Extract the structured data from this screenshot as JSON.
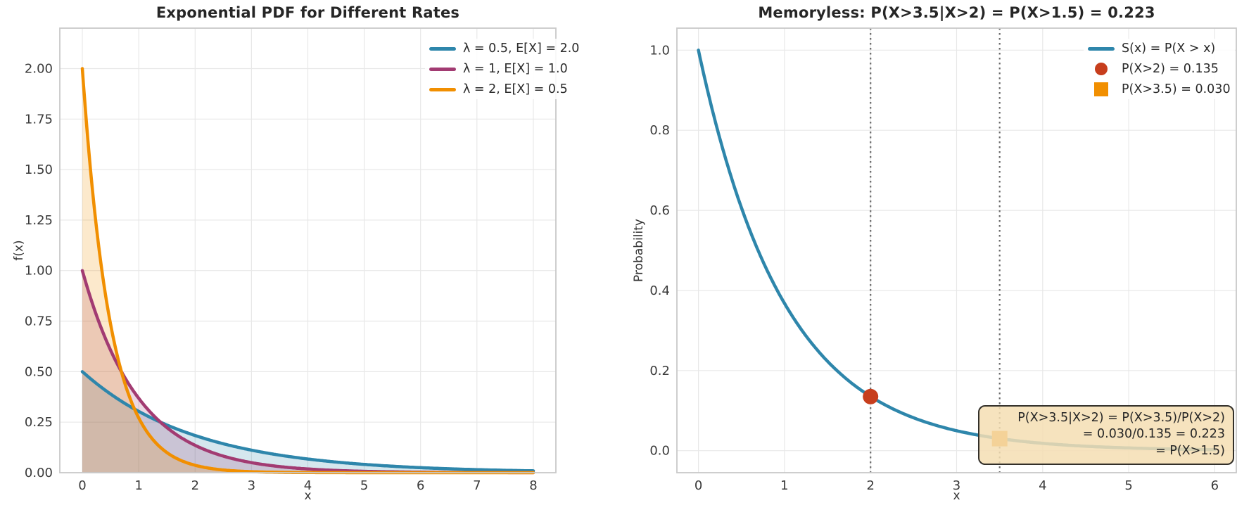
{
  "colors": {
    "blue": "#2E86AB",
    "magenta": "#A23B72",
    "orange": "#F18F01",
    "red": "#C73E1D",
    "grid": "#e8e8e8",
    "spine": "#c9c9c9",
    "vline": "#6b6b6b",
    "title_text": "#262626",
    "tick_text": "#3a3a3a"
  },
  "chart_data": [
    {
      "type": "line",
      "title": "Exponential PDF for Different Rates",
      "xlabel": "x",
      "ylabel": "f(x)",
      "xlim": [
        -0.4,
        8.4
      ],
      "ylim": [
        0,
        2.2
      ],
      "xticks": [
        0,
        1,
        2,
        3,
        4,
        5,
        6,
        7,
        8
      ],
      "xtick_labels": [
        "0",
        "1",
        "2",
        "3",
        "4",
        "5",
        "6",
        "7",
        "8"
      ],
      "yticks": [
        0,
        0.25,
        0.5,
        0.75,
        1.0,
        1.25,
        1.5,
        1.75,
        2.0
      ],
      "ytick_labels": [
        "0.00",
        "0.25",
        "0.50",
        "0.75",
        "1.00",
        "1.25",
        "1.50",
        "1.75",
        "2.00"
      ],
      "grid": true,
      "legend_position": "upper right",
      "series": [
        {
          "name": "λ = 0.5, E[X] = 2.0",
          "fn": "pdf",
          "lambda": 0.5,
          "color": "#2E86AB",
          "x_range": [
            0,
            8
          ],
          "fill_alpha": 0.2,
          "start_value": 0.5
        },
        {
          "name": "λ = 1, E[X] = 1.0",
          "fn": "pdf",
          "lambda": 1,
          "color": "#A23B72",
          "x_range": [
            0,
            8
          ],
          "fill_alpha": 0.2,
          "start_value": 1.0
        },
        {
          "name": "λ = 2, E[X] = 0.5",
          "fn": "pdf",
          "lambda": 2,
          "color": "#F18F01",
          "x_range": [
            0,
            8
          ],
          "fill_alpha": 0.2,
          "start_value": 2.0
        }
      ]
    },
    {
      "type": "line",
      "title": "Memoryless: P(X>3.5|X>2) = P(X>1.5) = 0.223",
      "xlabel": "x",
      "ylabel": "Probability",
      "xlim": [
        -0.25,
        6.25
      ],
      "ylim": [
        -0.055,
        1.055
      ],
      "xticks": [
        0,
        1,
        2,
        3,
        4,
        5,
        6
      ],
      "xtick_labels": [
        "0",
        "1",
        "2",
        "3",
        "4",
        "5",
        "6"
      ],
      "yticks": [
        0,
        0.2,
        0.4,
        0.6,
        0.8,
        1.0
      ],
      "ytick_labels": [
        "0.0",
        "0.2",
        "0.4",
        "0.6",
        "0.8",
        "1.0"
      ],
      "grid": true,
      "legend_position": "upper right",
      "series": [
        {
          "name": "S(x) = P(X > x)",
          "fn": "survival",
          "lambda": 1,
          "color": "#2E86AB",
          "x_range": [
            0,
            6
          ],
          "start_value": 1.0
        }
      ],
      "vlines": [
        {
          "x": 2,
          "style": "dotted"
        },
        {
          "x": 3.5,
          "style": "dotted"
        }
      ],
      "markers": [
        {
          "label": "P(X>2) = 0.135",
          "x": 2,
          "y": 0.135,
          "shape": "circle",
          "color": "#C73E1D"
        },
        {
          "label": "P(X>3.5) = 0.030",
          "x": 3.5,
          "y": 0.03,
          "shape": "square",
          "color": "#F18F01"
        }
      ],
      "annotation": {
        "lines": [
          "P(X>3.5|X>2) = P(X>3.5)/P(X>2)",
          "= 0.030/0.135 = 0.223",
          "= P(X>1.5)"
        ],
        "bg": "#F5DEB3",
        "bg_alpha": 0.85,
        "border": "#33302A"
      }
    }
  ]
}
